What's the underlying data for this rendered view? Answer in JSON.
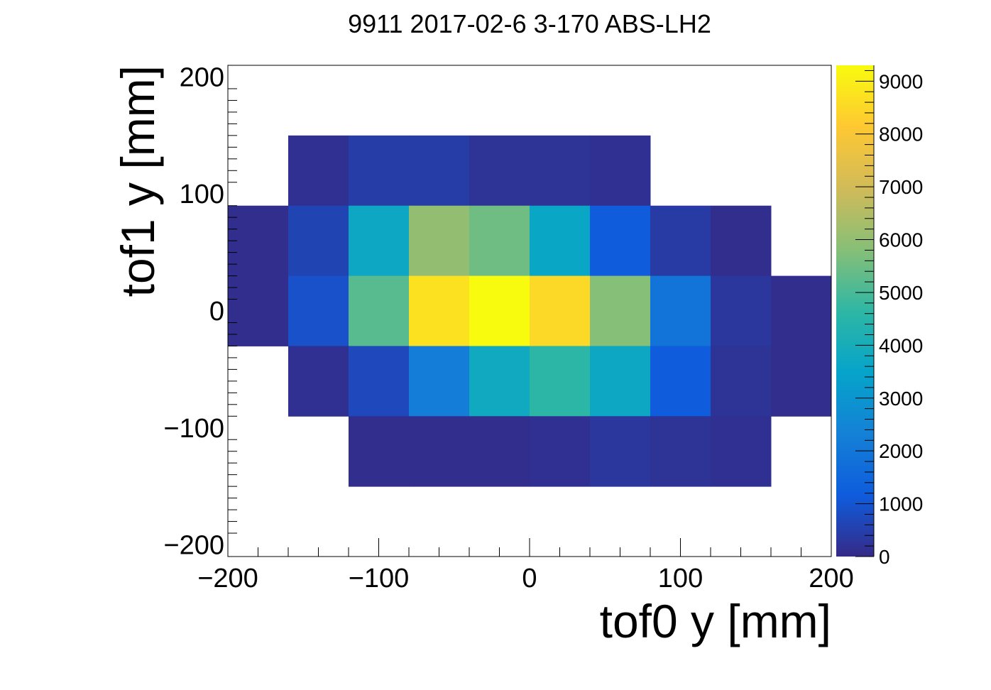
{
  "chart_data": {
    "type": "heatmap",
    "title": "9911 2017-02-6 3-170 ABS-LH2",
    "xlabel": "tof0 y [mm]",
    "ylabel": "tof1 y [mm]",
    "xlim": [
      -200,
      200
    ],
    "ylim": [
      -210,
      210
    ],
    "x_ticks": [
      -200,
      -100,
      0,
      100,
      200
    ],
    "x_tick_labels": [
      "−200",
      "−100",
      "0",
      "100",
      "200"
    ],
    "y_ticks": [
      -200,
      -100,
      0,
      100,
      200
    ],
    "y_tick_labels": [
      "−200",
      "−100",
      "0",
      "100",
      "200"
    ],
    "x_bin_edges": [
      -200,
      -160,
      -120,
      -80,
      -40,
      0,
      40,
      80,
      120,
      160,
      200
    ],
    "y_bin_edges": [
      -150,
      -90,
      -30,
      30,
      90,
      150
    ],
    "z_rows_top_to_bottom": [
      [
        null,
        150,
        450,
        450,
        200,
        200,
        150,
        null,
        null,
        null
      ],
      [
        100,
        600,
        3700,
        6000,
        5500,
        3600,
        1200,
        400,
        100,
        null
      ],
      [
        100,
        900,
        5200,
        8700,
        9300,
        8500,
        5800,
        1900,
        300,
        100
      ],
      [
        null,
        150,
        700,
        2200,
        3800,
        4600,
        3700,
        1200,
        200,
        100
      ],
      [
        null,
        null,
        100,
        100,
        100,
        150,
        300,
        200,
        150,
        null
      ]
    ],
    "colorbar": {
      "zlim": [
        0,
        9300
      ],
      "ticks": [
        0,
        1000,
        2000,
        3000,
        4000,
        5000,
        6000,
        7000,
        8000,
        9000
      ],
      "tick_labels": [
        "0",
        "1000",
        "2000",
        "3000",
        "4000",
        "5000",
        "6000",
        "7000",
        "8000",
        "9000"
      ],
      "palette": [
        "#352a87",
        "#0f5cdd",
        "#1481d6",
        "#06a4ca",
        "#2eb7a4",
        "#87bf77",
        "#d1bb59",
        "#fec832",
        "#f9fb0e"
      ]
    },
    "grid": false,
    "legend": "none"
  }
}
